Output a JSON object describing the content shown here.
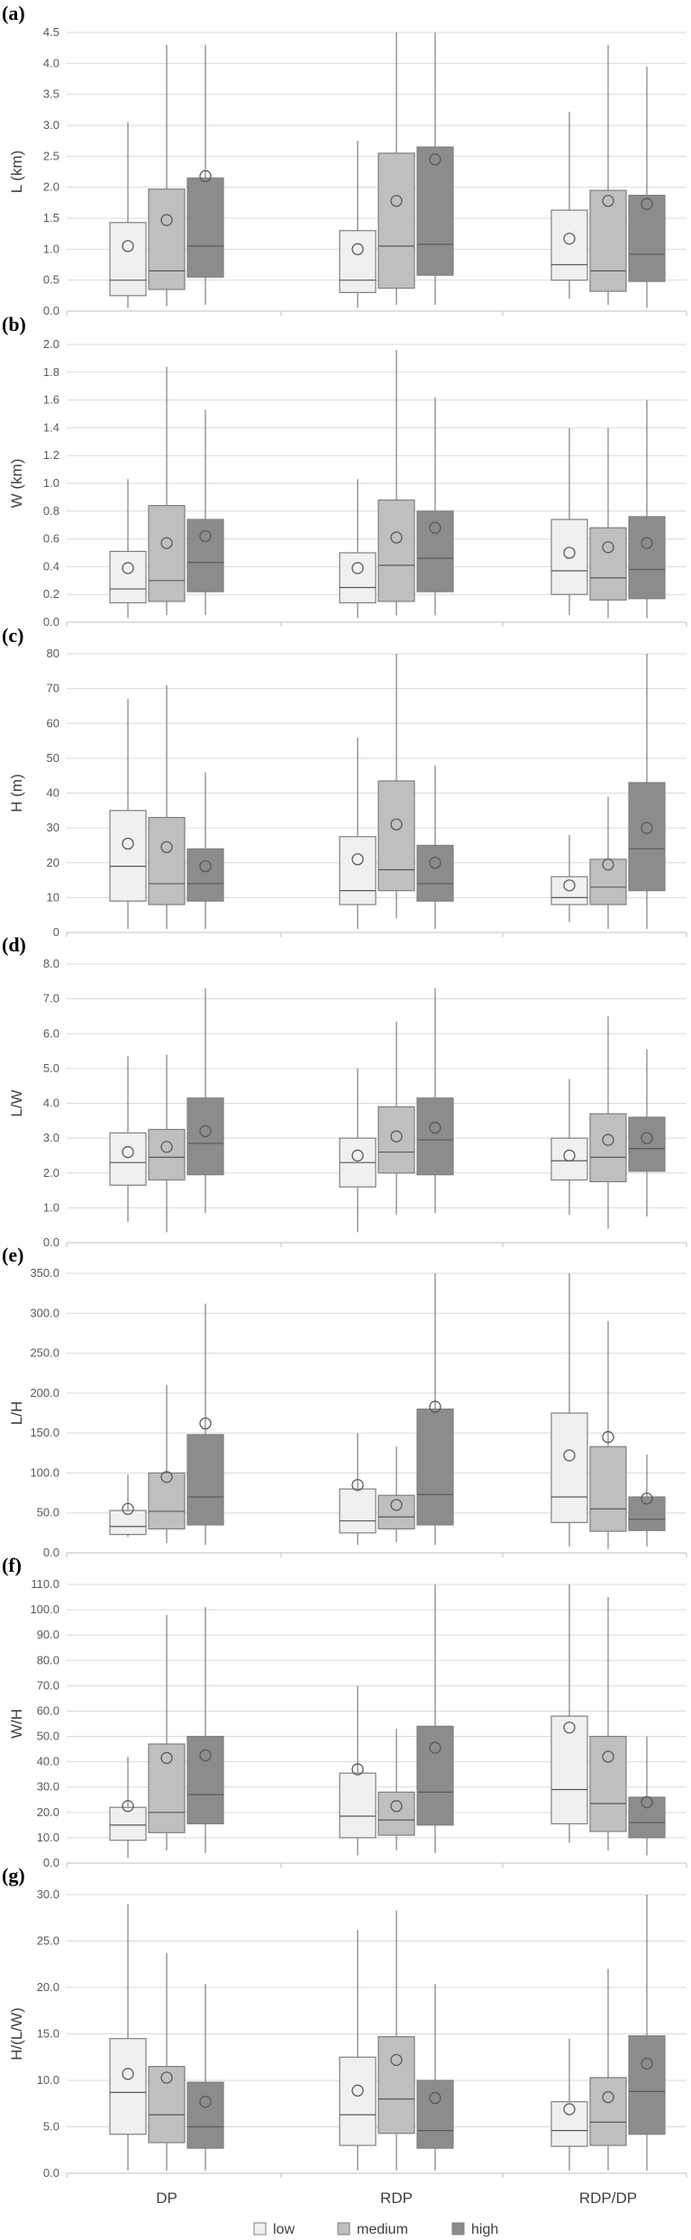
{
  "categories": [
    "DP",
    "RDP",
    "RDP/DP"
  ],
  "legend": [
    {
      "label": "low",
      "color": "#f0f0f0"
    },
    {
      "label": "medium",
      "color": "#bfbfbf"
    },
    {
      "label": "high",
      "color": "#8c8c8c"
    }
  ],
  "chart_data": [
    {
      "type": "box",
      "panel": "(a)",
      "ylabel": "L (km)",
      "yticks": [
        "0.0",
        "0.5",
        "1.0",
        "1.5",
        "2.0",
        "2.5",
        "3.0",
        "3.5",
        "4.0",
        "4.5"
      ],
      "ylim": [
        0,
        4.5
      ],
      "groups": [
        [
          {
            "min": 0.05,
            "q1": 0.25,
            "median": 0.5,
            "q3": 1.43,
            "max": 3.05,
            "mean": 1.05
          },
          {
            "min": 0.08,
            "q1": 0.35,
            "median": 0.65,
            "q3": 1.97,
            "max": 4.3,
            "mean": 1.47
          },
          {
            "min": 0.1,
            "q1": 0.55,
            "median": 1.05,
            "q3": 2.15,
            "max": 4.3,
            "mean": 2.18
          }
        ],
        [
          {
            "min": 0.05,
            "q1": 0.3,
            "median": 0.5,
            "q3": 1.3,
            "max": 2.75,
            "mean": 1.0
          },
          {
            "min": 0.1,
            "q1": 0.37,
            "median": 1.05,
            "q3": 2.55,
            "max": 4.5,
            "mean": 1.78
          },
          {
            "min": 0.1,
            "q1": 0.58,
            "median": 1.08,
            "q3": 2.65,
            "max": 4.5,
            "mean": 2.45
          }
        ],
        [
          {
            "min": 0.2,
            "q1": 0.5,
            "median": 0.75,
            "q3": 1.63,
            "max": 3.22,
            "mean": 1.17
          },
          {
            "min": 0.1,
            "q1": 0.32,
            "median": 0.65,
            "q3": 1.95,
            "max": 4.3,
            "mean": 1.78
          },
          {
            "min": 0.05,
            "q1": 0.48,
            "median": 0.92,
            "q3": 1.87,
            "max": 3.95,
            "mean": 1.73
          }
        ]
      ]
    },
    {
      "type": "box",
      "panel": "(b)",
      "ylabel": "W (km)",
      "yticks": [
        "0.0",
        "0.2",
        "0.4",
        "0.6",
        "0.8",
        "1.0",
        "1.2",
        "1.4",
        "1.6",
        "1.8",
        "2.0"
      ],
      "ylim": [
        0,
        2.0
      ],
      "groups": [
        [
          {
            "min": 0.03,
            "q1": 0.14,
            "median": 0.24,
            "q3": 0.51,
            "max": 1.03,
            "mean": 0.39
          },
          {
            "min": 0.05,
            "q1": 0.15,
            "median": 0.3,
            "q3": 0.84,
            "max": 1.84,
            "mean": 0.57
          },
          {
            "min": 0.05,
            "q1": 0.22,
            "median": 0.43,
            "q3": 0.74,
            "max": 1.53,
            "mean": 0.62
          }
        ],
        [
          {
            "min": 0.03,
            "q1": 0.14,
            "median": 0.25,
            "q3": 0.5,
            "max": 1.03,
            "mean": 0.39
          },
          {
            "min": 0.05,
            "q1": 0.15,
            "median": 0.41,
            "q3": 0.88,
            "max": 1.96,
            "mean": 0.61
          },
          {
            "min": 0.05,
            "q1": 0.22,
            "median": 0.46,
            "q3": 0.8,
            "max": 1.62,
            "mean": 0.68
          }
        ],
        [
          {
            "min": 0.05,
            "q1": 0.2,
            "median": 0.37,
            "q3": 0.74,
            "max": 1.4,
            "mean": 0.5
          },
          {
            "min": 0.03,
            "q1": 0.16,
            "median": 0.32,
            "q3": 0.68,
            "max": 1.4,
            "mean": 0.54
          },
          {
            "min": 0.03,
            "q1": 0.17,
            "median": 0.38,
            "q3": 0.76,
            "max": 1.6,
            "mean": 0.57
          }
        ]
      ]
    },
    {
      "type": "box",
      "panel": "(c)",
      "ylabel": "H (m)",
      "yticks": [
        "0",
        "10",
        "20",
        "30",
        "40",
        "50",
        "60",
        "70",
        "80"
      ],
      "ylim": [
        0,
        80
      ],
      "groups": [
        [
          {
            "min": 1,
            "q1": 9,
            "median": 19,
            "q3": 35,
            "max": 67,
            "mean": 25.5
          },
          {
            "min": 1,
            "q1": 8,
            "median": 14,
            "q3": 33,
            "max": 71,
            "mean": 24.5
          },
          {
            "min": 1,
            "q1": 9,
            "median": 14,
            "q3": 24,
            "max": 46,
            "mean": 19
          }
        ],
        [
          {
            "min": 1,
            "q1": 8,
            "median": 12,
            "q3": 27.5,
            "max": 56,
            "mean": 21
          },
          {
            "min": 4,
            "q1": 12,
            "median": 18,
            "q3": 43.5,
            "max": 80,
            "mean": 31
          },
          {
            "min": 1,
            "q1": 9,
            "median": 14,
            "q3": 25,
            "max": 48,
            "mean": 20
          }
        ],
        [
          {
            "min": 3,
            "q1": 8,
            "median": 10,
            "q3": 16,
            "max": 28,
            "mean": 13.5
          },
          {
            "min": 1,
            "q1": 8,
            "median": 13,
            "q3": 21,
            "max": 39,
            "mean": 19.5
          },
          {
            "min": 1,
            "q1": 12,
            "median": 24,
            "q3": 43,
            "max": 80,
            "mean": 30
          }
        ]
      ]
    },
    {
      "type": "box",
      "panel": "(d)",
      "ylabel": "L/W",
      "yticks": [
        "0.0",
        "1.0",
        "2.0",
        "3.0",
        "4.0",
        "5.0",
        "6.0",
        "7.0",
        "8.0"
      ],
      "ylim": [
        0,
        8.0
      ],
      "groups": [
        [
          {
            "min": 0.6,
            "q1": 1.65,
            "median": 2.3,
            "q3": 3.15,
            "max": 5.35,
            "mean": 2.6
          },
          {
            "min": 0.3,
            "q1": 1.8,
            "median": 2.45,
            "q3": 3.25,
            "max": 5.4,
            "mean": 2.75
          },
          {
            "min": 0.85,
            "q1": 1.95,
            "median": 2.85,
            "q3": 4.15,
            "max": 7.3,
            "mean": 3.2
          }
        ],
        [
          {
            "min": 0.3,
            "q1": 1.6,
            "median": 2.3,
            "q3": 3.0,
            "max": 5.0,
            "mean": 2.5
          },
          {
            "min": 0.8,
            "q1": 2.0,
            "median": 2.6,
            "q3": 3.9,
            "max": 6.35,
            "mean": 3.05
          },
          {
            "min": 0.85,
            "q1": 1.95,
            "median": 2.95,
            "q3": 4.15,
            "max": 7.3,
            "mean": 3.3
          }
        ],
        [
          {
            "min": 0.8,
            "q1": 1.8,
            "median": 2.35,
            "q3": 3.0,
            "max": 4.7,
            "mean": 2.5
          },
          {
            "min": 0.4,
            "q1": 1.75,
            "median": 2.45,
            "q3": 3.7,
            "max": 6.5,
            "mean": 2.95
          },
          {
            "min": 0.75,
            "q1": 2.05,
            "median": 2.7,
            "q3": 3.6,
            "max": 5.55,
            "mean": 3.0
          }
        ]
      ]
    },
    {
      "type": "box",
      "panel": "(e)",
      "ylabel": "L/H",
      "yticks": [
        "0.0",
        "50.0",
        "100.0",
        "150.0",
        "200.0",
        "250.0",
        "300.0",
        "350.0"
      ],
      "ylim": [
        0,
        350
      ],
      "groups": [
        [
          {
            "min": 20,
            "q1": 23,
            "median": 33,
            "q3": 53,
            "max": 98,
            "mean": 55
          },
          {
            "min": 12,
            "q1": 30,
            "median": 52,
            "q3": 100,
            "max": 210,
            "mean": 95
          },
          {
            "min": 10,
            "q1": 35,
            "median": 70,
            "q3": 148,
            "max": 312,
            "mean": 162
          }
        ],
        [
          {
            "min": 10,
            "q1": 25,
            "median": 40,
            "q3": 80,
            "max": 150,
            "mean": 85
          },
          {
            "min": 13,
            "q1": 30,
            "median": 45,
            "q3": 72,
            "max": 133,
            "mean": 60
          },
          {
            "min": 10,
            "q1": 35,
            "median": 73,
            "q3": 180,
            "max": 350,
            "mean": 183
          }
        ],
        [
          {
            "min": 8,
            "q1": 38,
            "median": 70,
            "q3": 175,
            "max": 350,
            "mean": 122
          },
          {
            "min": 5,
            "q1": 27,
            "median": 55,
            "q3": 133,
            "max": 290,
            "mean": 145
          },
          {
            "min": 8,
            "q1": 28,
            "median": 42,
            "q3": 70,
            "max": 123,
            "mean": 68
          }
        ]
      ]
    },
    {
      "type": "box",
      "panel": "(f)",
      "ylabel": "W/H",
      "yticks": [
        "0.0",
        "10.0",
        "20.0",
        "30.0",
        "40.0",
        "50.0",
        "60.0",
        "70.0",
        "80.0",
        "90.0",
        "100.0",
        "110.0"
      ],
      "ylim": [
        0,
        110
      ],
      "groups": [
        [
          {
            "min": 2,
            "q1": 9,
            "median": 15,
            "q3": 22,
            "max": 42,
            "mean": 22.5
          },
          {
            "min": 5,
            "q1": 12,
            "median": 20,
            "q3": 47,
            "max": 98,
            "mean": 41.5
          },
          {
            "min": 4,
            "q1": 15.5,
            "median": 27,
            "q3": 50,
            "max": 101,
            "mean": 42.5
          }
        ],
        [
          {
            "min": 3,
            "q1": 10,
            "median": 18.5,
            "q3": 35.5,
            "max": 70,
            "mean": 37
          },
          {
            "min": 5,
            "q1": 11,
            "median": 17,
            "q3": 28,
            "max": 53,
            "mean": 22.5
          },
          {
            "min": 4,
            "q1": 15,
            "median": 28,
            "q3": 54,
            "max": 110,
            "mean": 45.5
          }
        ],
        [
          {
            "min": 8,
            "q1": 15.5,
            "median": 29,
            "q3": 58,
            "max": 110,
            "mean": 53.5
          },
          {
            "min": 5,
            "q1": 12.5,
            "median": 23.5,
            "q3": 50,
            "max": 105,
            "mean": 42
          },
          {
            "min": 3,
            "q1": 10,
            "median": 16,
            "q3": 26,
            "max": 50,
            "mean": 24
          }
        ]
      ]
    },
    {
      "type": "box",
      "panel": "(g)",
      "ylabel": "H/(L/W)",
      "yticks": [
        "0.0",
        "5.0",
        "10.0",
        "15.0",
        "20.0",
        "25.0",
        "30.0"
      ],
      "ylim": [
        0,
        30
      ],
      "groups": [
        [
          {
            "min": 0.3,
            "q1": 4.2,
            "median": 8.7,
            "q3": 14.5,
            "max": 29,
            "mean": 10.7
          },
          {
            "min": 0.3,
            "q1": 3.3,
            "median": 6.3,
            "q3": 11.5,
            "max": 23.7,
            "mean": 10.3
          },
          {
            "min": 0.3,
            "q1": 2.7,
            "median": 5.0,
            "q3": 9.8,
            "max": 20.4,
            "mean": 7.7
          }
        ],
        [
          {
            "min": 0.3,
            "q1": 3.0,
            "median": 6.3,
            "q3": 12.5,
            "max": 26.2,
            "mean": 8.9
          },
          {
            "min": 0.3,
            "q1": 4.3,
            "median": 8.0,
            "q3": 14.7,
            "max": 28.3,
            "mean": 12.2
          },
          {
            "min": 0.3,
            "q1": 2.7,
            "median": 4.6,
            "q3": 10.0,
            "max": 20.4,
            "mean": 8.1
          }
        ],
        [
          {
            "min": 0.3,
            "q1": 2.9,
            "median": 4.6,
            "q3": 7.7,
            "max": 14.5,
            "mean": 6.9
          },
          {
            "min": 0.3,
            "q1": 3.0,
            "median": 5.5,
            "q3": 10.3,
            "max": 22.0,
            "mean": 8.2
          },
          {
            "min": 0.3,
            "q1": 4.2,
            "median": 8.8,
            "q3": 14.8,
            "max": 30,
            "mean": 11.8
          }
        ]
      ]
    }
  ]
}
